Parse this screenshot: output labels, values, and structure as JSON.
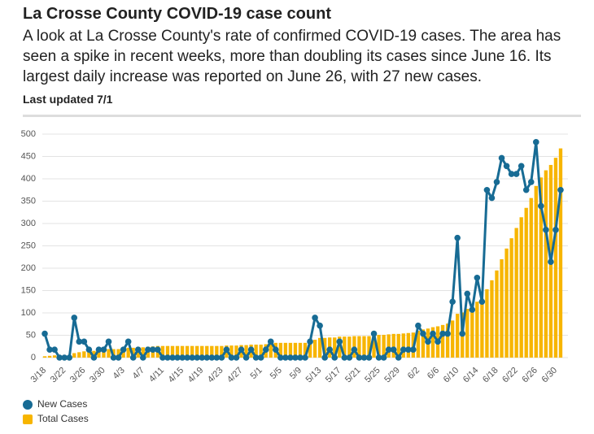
{
  "chart_data": {
    "type": "bar-line",
    "title": "La Crosse County COVID-19 case count",
    "subtitle": "A look at La Crosse County's rate of confirmed COVID-19 cases. The area has seen a spike in recent weeks, more than doubling its cases since June 16. Its largest daily increase was reported on June 26, with 27 new cases.",
    "note": "Last updated 7/1",
    "categories": [
      "3/18",
      null,
      null,
      null,
      "3/22",
      null,
      null,
      null,
      "3/26",
      null,
      null,
      null,
      "3/30",
      null,
      null,
      null,
      "4/3",
      null,
      null,
      null,
      "4/7",
      null,
      null,
      null,
      "4/11",
      null,
      null,
      null,
      "4/15",
      null,
      null,
      null,
      "4/19",
      null,
      null,
      null,
      "4/23",
      null,
      null,
      null,
      "4/27",
      null,
      null,
      null,
      "5/1",
      null,
      null,
      null,
      "5/5",
      null,
      null,
      null,
      "5/9",
      null,
      null,
      null,
      "5/13",
      null,
      null,
      null,
      "5/17",
      null,
      null,
      null,
      "5/21",
      null,
      null,
      null,
      "5/25",
      null,
      null,
      null,
      "5/29",
      null,
      null,
      null,
      "6/2",
      null,
      null,
      null,
      "6/6",
      null,
      null,
      null,
      "6/10",
      null,
      null,
      null,
      "6/14",
      null,
      null,
      null,
      "6/18",
      null,
      null,
      null,
      "6/22",
      null,
      null,
      null,
      "6/26",
      null,
      null,
      null,
      "6/30",
      null
    ],
    "series": [
      {
        "name": "New Cases",
        "type": "line",
        "axis": "y2",
        "color": "#176b94",
        "values": [
          3,
          1,
          1,
          0,
          0,
          0,
          5,
          2,
          2,
          1,
          0,
          1,
          1,
          2,
          0,
          0,
          1,
          2,
          0,
          1,
          0,
          1,
          1,
          1,
          0,
          0,
          0,
          0,
          0,
          0,
          0,
          0,
          0,
          0,
          0,
          0,
          0,
          1,
          0,
          0,
          1,
          0,
          1,
          0,
          0,
          1,
          2,
          1,
          0,
          0,
          0,
          0,
          0,
          0,
          2,
          5,
          4,
          0,
          1,
          0,
          2,
          0,
          0,
          1,
          0,
          0,
          0,
          3,
          0,
          0,
          1,
          1,
          0,
          1,
          1,
          1,
          4,
          3,
          2,
          3,
          2,
          3,
          3,
          7,
          15,
          3,
          8,
          6,
          10,
          7,
          21,
          20,
          22,
          25,
          24,
          23,
          23,
          24,
          21,
          22,
          27,
          19,
          16,
          12,
          16,
          21
        ]
      },
      {
        "name": "Total Cases",
        "type": "bar",
        "color": "#f7b500",
        "values": [
          3,
          4,
          5,
          5,
          5,
          5,
          10,
          12,
          14,
          15,
          15,
          16,
          17,
          19,
          19,
          19,
          20,
          22,
          22,
          23,
          23,
          24,
          25,
          26,
          26,
          26,
          26,
          26,
          26,
          26,
          26,
          26,
          26,
          26,
          26,
          26,
          26,
          27,
          27,
          27,
          28,
          28,
          29,
          29,
          29,
          30,
          32,
          33,
          33,
          33,
          33,
          33,
          33,
          33,
          35,
          40,
          44,
          44,
          45,
          45,
          47,
          47,
          47,
          48,
          48,
          48,
          48,
          51,
          51,
          51,
          52,
          53,
          53,
          54,
          55,
          56,
          60,
          63,
          65,
          68,
          70,
          73,
          76,
          83,
          98,
          101,
          109,
          115,
          125,
          132,
          153,
          173,
          195,
          220,
          244,
          267,
          290,
          314,
          335,
          357,
          384,
          403,
          419,
          431,
          447,
          468
        ]
      }
    ],
    "ylim": [
      0,
      500
    ],
    "yticks": [
      0,
      50,
      100,
      150,
      200,
      250,
      300,
      350,
      400,
      450,
      500
    ],
    "y2lim": [
      0,
      28
    ],
    "grid": true,
    "legend": "bottom-left"
  }
}
